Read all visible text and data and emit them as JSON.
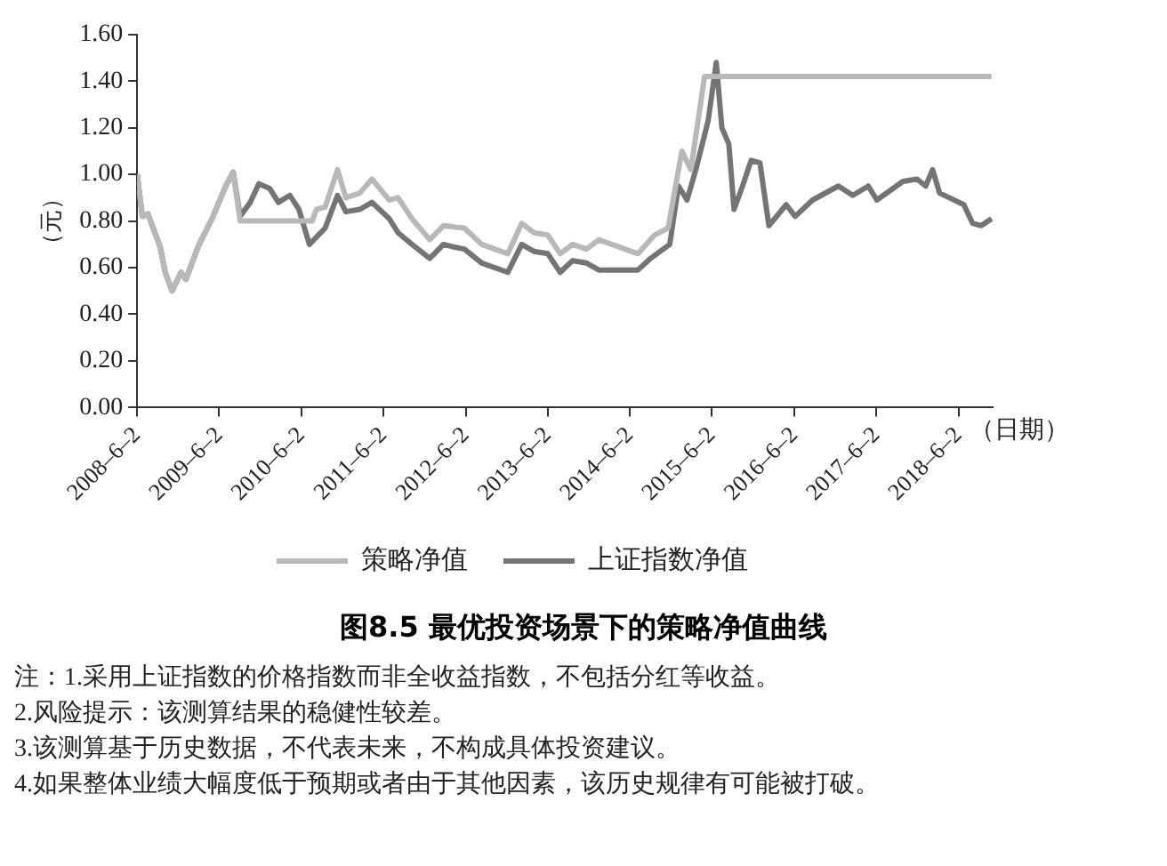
{
  "chart_data": {
    "type": "line",
    "title": "图8.5 最优投资场景下的策略净值曲线",
    "ylabel": "（元）",
    "xlabel": "（日期）",
    "xlim": [
      "2008-06-02",
      "2018-11-01"
    ],
    "xticks": [
      {
        "value": "2008-06-02",
        "label": "2008–6–2"
      },
      {
        "value": "2009-06-02",
        "label": "2009–6–2"
      },
      {
        "value": "2010-06-02",
        "label": "2010–6–2"
      },
      {
        "value": "2011-06-02",
        "label": "2011–6–2"
      },
      {
        "value": "2012-06-02",
        "label": "2012–6–2"
      },
      {
        "value": "2013-06-02",
        "label": "2013–6–2"
      },
      {
        "value": "2014-06-02",
        "label": "2014–6–2"
      },
      {
        "value": "2015-06-02",
        "label": "2015–6–2"
      },
      {
        "value": "2016-06-02",
        "label": "2016–6–2"
      },
      {
        "value": "2017-06-02",
        "label": "2017–6–2"
      },
      {
        "value": "2018-06-02",
        "label": "2018–6–2"
      }
    ],
    "ylim": [
      0,
      1.6
    ],
    "yticks": [
      {
        "value": 0,
        "label": "0.00"
      },
      {
        "value": 0.2,
        "label": "0.20"
      },
      {
        "value": 0.4,
        "label": "0.40"
      },
      {
        "value": 0.6,
        "label": "0.60"
      },
      {
        "value": 0.8,
        "label": "0.80"
      },
      {
        "value": 1,
        "label": "1.00"
      },
      {
        "value": 1.2,
        "label": "1.20"
      },
      {
        "value": 1.4,
        "label": "1.40"
      },
      {
        "value": 1.6,
        "label": "1.60"
      }
    ],
    "legend": "bottom",
    "marker": "none",
    "line_style": "solid",
    "series": [
      {
        "name": "策略净值",
        "color": "#b8b8b8",
        "x": [
          "2008-06-02",
          "2008-06-25",
          "2008-07-20",
          "2008-09-12",
          "2008-10-05",
          "2008-11-04",
          "2008-12-14",
          "2009-01-05",
          "2009-02-28",
          "2009-05-01",
          "2009-07-01",
          "2009-08-03",
          "2009-09-03",
          "2010-07-20",
          "2010-08-08",
          "2010-09-16",
          "2010-11-10",
          "2010-12-17",
          "2011-02-17",
          "2011-04-12",
          "2011-06-28",
          "2011-08-06",
          "2011-10-07",
          "2011-12-25",
          "2012-02-24",
          "2012-05-27",
          "2012-08-12",
          "2012-12-06",
          "2013-02-06",
          "2013-04-01",
          "2013-06-02",
          "2013-07-27",
          "2013-09-20",
          "2013-11-21",
          "2014-01-15",
          "2014-07-08",
          "2014-09-20",
          "2014-11-19",
          "2015-01-19",
          "2015-02-28",
          "2015-04-30",
          "2018-10-27"
        ],
        "values": [
          1.0,
          0.82,
          0.83,
          0.69,
          0.58,
          0.5,
          0.58,
          0.55,
          0.69,
          0.81,
          0.95,
          1.01,
          0.8,
          0.8,
          0.85,
          0.86,
          1.02,
          0.9,
          0.92,
          0.98,
          0.89,
          0.9,
          0.81,
          0.72,
          0.78,
          0.77,
          0.7,
          0.66,
          0.79,
          0.75,
          0.74,
          0.66,
          0.7,
          0.68,
          0.72,
          0.66,
          0.74,
          0.77,
          1.1,
          1.02,
          1.42,
          1.42
        ]
      },
      {
        "name": "上证指数净值",
        "color": "#747474",
        "x": [
          "2008-06-02",
          "2008-06-25",
          "2008-07-20",
          "2008-09-12",
          "2008-10-05",
          "2008-11-04",
          "2008-12-14",
          "2009-01-05",
          "2009-02-28",
          "2009-05-01",
          "2009-07-01",
          "2009-08-03",
          "2009-09-03",
          "2009-10-18",
          "2009-11-25",
          "2010-01-12",
          "2010-02-20",
          "2010-04-12",
          "2010-05-22",
          "2010-07-08",
          "2010-09-16",
          "2010-11-10",
          "2010-12-17",
          "2011-02-17",
          "2011-04-12",
          "2011-06-28",
          "2011-08-06",
          "2011-10-07",
          "2011-12-25",
          "2012-02-24",
          "2012-04-04",
          "2012-05-27",
          "2012-08-12",
          "2012-12-06",
          "2013-02-06",
          "2013-04-01",
          "2013-06-02",
          "2013-07-27",
          "2013-09-20",
          "2013-11-21",
          "2014-01-15",
          "2014-04-08",
          "2014-07-08",
          "2014-09-02",
          "2014-11-26",
          "2015-01-04",
          "2015-02-11",
          "2015-03-22",
          "2015-05-16",
          "2015-06-21",
          "2015-07-16",
          "2015-08-16",
          "2015-09-08",
          "2015-10-16",
          "2015-11-23",
          "2016-01-01",
          "2016-02-10",
          "2016-04-27",
          "2016-06-06",
          "2016-08-22",
          "2016-12-15",
          "2017-02-17",
          "2017-04-27",
          "2017-06-04",
          "2017-09-28",
          "2017-11-29",
          "2018-01-07",
          "2018-02-07",
          "2018-03-10",
          "2018-06-26",
          "2018-08-04",
          "2018-09-11",
          "2018-10-27"
        ],
        "values": [
          1.0,
          0.82,
          0.83,
          0.69,
          0.58,
          0.5,
          0.58,
          0.55,
          0.69,
          0.81,
          0.95,
          1.01,
          0.82,
          0.88,
          0.96,
          0.94,
          0.88,
          0.91,
          0.85,
          0.7,
          0.77,
          0.91,
          0.84,
          0.85,
          0.88,
          0.81,
          0.75,
          0.7,
          0.64,
          0.7,
          0.69,
          0.68,
          0.62,
          0.58,
          0.7,
          0.67,
          0.66,
          0.58,
          0.63,
          0.62,
          0.59,
          0.59,
          0.59,
          0.64,
          0.7,
          0.95,
          0.89,
          1.02,
          1.23,
          1.48,
          1.2,
          1.13,
          0.85,
          0.95,
          1.06,
          1.05,
          0.78,
          0.87,
          0.82,
          0.89,
          0.95,
          0.91,
          0.95,
          0.89,
          0.97,
          0.98,
          0.95,
          1.02,
          0.92,
          0.87,
          0.79,
          0.78,
          0.81
        ]
      }
    ],
    "annotations": [
      "注：1.采用上证指数的价格指数而非全收益指数，不包括分红等收益。",
      "2.风险提示：该测算结果的稳健性较差。",
      "3.该测算基于历史数据，不代表未来，不构成具体投资建议。",
      "4.如果整体业绩大幅度低于预期或者由于其他因素，该历史规律有可能被打破。"
    ]
  }
}
